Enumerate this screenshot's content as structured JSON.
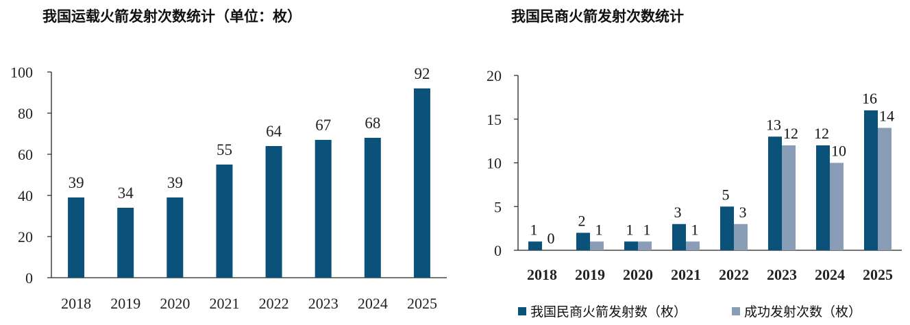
{
  "chart_data": [
    {
      "type": "bar",
      "title": "我国运载火箭发射次数统计（单位：枚）",
      "categories": [
        "2018",
        "2019",
        "2020",
        "2021",
        "2022",
        "2023",
        "2024",
        "2025"
      ],
      "values": [
        39,
        34,
        39,
        55,
        64,
        67,
        68,
        92
      ],
      "ylim": [
        0,
        100
      ],
      "yticks": [
        "0",
        "20",
        "40",
        "60",
        "80",
        "100"
      ],
      "color": "#0b527a",
      "grid": false
    },
    {
      "type": "bar",
      "title": "我国民商火箭发射次数统计",
      "categories": [
        "2018",
        "2019",
        "2020",
        "2021",
        "2022",
        "2023",
        "2024",
        "2025"
      ],
      "series": [
        {
          "name": "我国民商火箭发射数（枚）",
          "values": [
            1,
            2,
            1,
            3,
            5,
            13,
            12,
            16
          ],
          "color": "#0b527a"
        },
        {
          "name": "成功发射次数（枚）",
          "values": [
            0,
            1,
            1,
            1,
            3,
            12,
            10,
            14
          ],
          "color": "#8a9db7"
        }
      ],
      "ylim": [
        0,
        20
      ],
      "yticks": [
        "0",
        "5",
        "10",
        "15",
        "20"
      ],
      "legend": "bottom",
      "grid": false
    }
  ]
}
